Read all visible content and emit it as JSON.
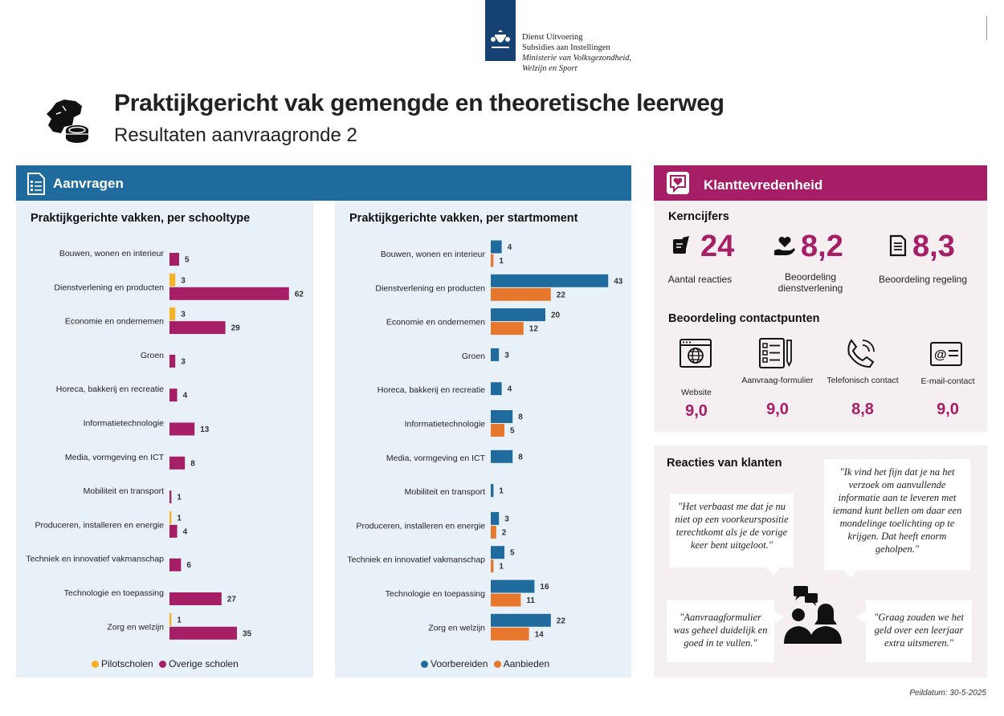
{
  "logo": {
    "line1": "Dienst Uitvoering",
    "line2": "Subsidies aan Instellingen",
    "line3": "Ministerie van Volksgezondheid,",
    "line4": "Welzijn en Sport"
  },
  "header": {
    "title": "Praktijkgericht vak gemengde en theoretische leerweg",
    "subtitle": "Resultaten aanvraagronde 2"
  },
  "aanvragen": {
    "title": "Aanvragen"
  },
  "chart_data": [
    {
      "type": "bar",
      "orientation": "horizontal",
      "title": "Praktijkgerichte vakken, per schooltype",
      "categories": [
        "Bouwen, wonen en interieur",
        "Dienstverlening en producten",
        "Economie en ondernemen",
        "Groen",
        "Horeca, bakkerij en recreatie",
        "Informatietechnologie",
        "Media, vormgeving en ICT",
        "Mobiliteit en transport",
        "Produceren, installeren en energie",
        "Techniek en innovatief vakmanschap",
        "Technologie en toepassing",
        "Zorg en welzijn"
      ],
      "series": [
        {
          "name": "Pilotscholen",
          "color": "#f5b324",
          "values": [
            null,
            3,
            3,
            null,
            null,
            null,
            null,
            null,
            1,
            null,
            null,
            1
          ]
        },
        {
          "name": "Overige scholen",
          "color": "#a61e65",
          "values": [
            5,
            62,
            29,
            3,
            4,
            13,
            8,
            1,
            4,
            6,
            27,
            35
          ]
        }
      ],
      "legend": "bottom",
      "grid": false
    },
    {
      "type": "bar",
      "orientation": "horizontal",
      "title": "Praktijkgerichte vakken, per startmoment",
      "categories": [
        "Bouwen, wonen en interieur",
        "Dienstverlening en producten",
        "Economie en ondernemen",
        "Groen",
        "Horeca, bakkerij en recreatie",
        "Informatietechnologie",
        "Media, vormgeving en ICT",
        "Mobiliteit en transport",
        "Produceren, installeren en energie",
        "Techniek en innovatief vakmanschap",
        "Technologie en toepassing",
        "Zorg en welzijn"
      ],
      "series": [
        {
          "name": "Voorbereiden",
          "color": "#1f6b9d",
          "values": [
            4,
            43,
            20,
            3,
            4,
            8,
            8,
            1,
            3,
            5,
            16,
            22
          ]
        },
        {
          "name": "Aanbieden",
          "color": "#e8772e",
          "values": [
            1,
            22,
            12,
            null,
            null,
            5,
            null,
            null,
            2,
            1,
            11,
            14
          ]
        }
      ],
      "legend": "bottom",
      "grid": false
    }
  ],
  "klant": {
    "title": "Klanttevredenheid",
    "kerncijfers_title": "Kerncijfers",
    "kerncijfers": [
      {
        "icon": "survey-hand-icon",
        "value": "24",
        "label": "Aantal reacties"
      },
      {
        "icon": "heart-hand-icon",
        "value": "8,2",
        "label": "Beoordeling dienstverlening"
      },
      {
        "icon": "document-icon",
        "value": "8,3",
        "label": "Beoordeling regeling"
      }
    ],
    "contact_title": "Beoordeling contactpunten",
    "contactpunten": [
      {
        "icon": "website-icon",
        "label": "Website",
        "score": "9,0"
      },
      {
        "icon": "form-icon",
        "label": "Aanvraag-formulier",
        "score": "9,0"
      },
      {
        "icon": "phone-icon",
        "label": "Telefonisch contact",
        "score": "8,8"
      },
      {
        "icon": "email-icon",
        "label": "E-mail-contact",
        "score": "9,0"
      }
    ]
  },
  "reacties": {
    "title": "Reacties van klanten",
    "quotes": [
      "\"Het verbaast me dat je nu niet op een voorkeurspositie terechtkomt als je de vorige keer bent uitgeloot.\"",
      "\"Ik vind het fijn dat je na het verzoek om aanvullende informatie aan te leveren met iemand kunt bellen om daar een mondelinge toelichting op te krijgen. Dat heeft enorm geholpen.\"",
      "\"Aanvraagformulier was geheel duidelijk en goed in te vullen.\"",
      "\"Graag zouden we het geld over een leerjaar extra uitsmeren.\""
    ]
  },
  "footer": {
    "peildatum": "Peildatum: 30-5-2025"
  }
}
